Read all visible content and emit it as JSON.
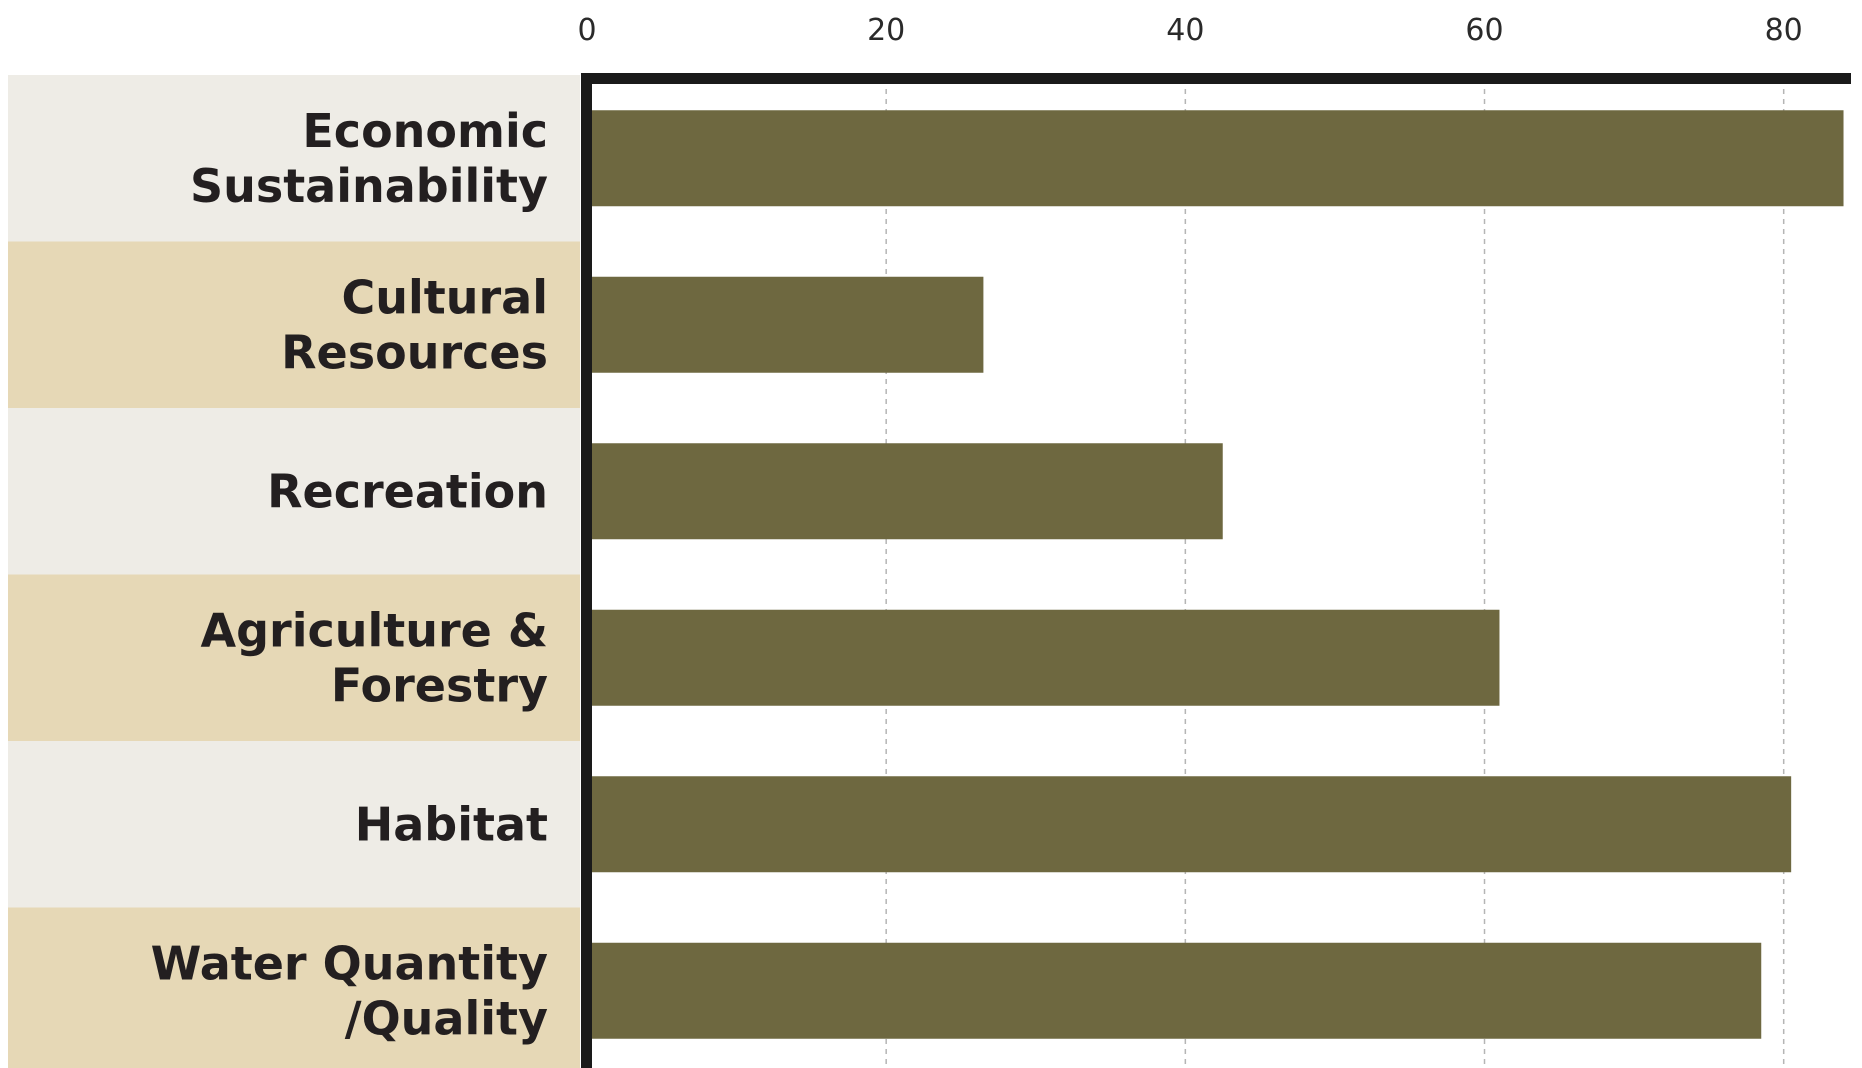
{
  "chart_data": {
    "type": "bar",
    "orientation": "horizontal",
    "title": "",
    "xlabel": "",
    "ylabel": "",
    "categories": [
      [
        "Economic",
        "Sustainability"
      ],
      [
        "Cultural",
        "Resources"
      ],
      [
        "Recreation"
      ],
      [
        "Agriculture &",
        "Forestry"
      ],
      [
        "Habitat"
      ],
      [
        "Water Quantity",
        "/Quality"
      ]
    ],
    "values": [
      84,
      26.5,
      42.5,
      61,
      80.5,
      78.5
    ],
    "xlim": [
      0,
      84.5
    ],
    "xticks": [
      0,
      20,
      40,
      60,
      80
    ],
    "xtick_labels": [
      "0",
      "20",
      "40",
      "60",
      "80"
    ],
    "x_axis_position": "top",
    "grid": "vertical dashed",
    "legend": "none",
    "colors": {
      "bar": "#6e6840",
      "band_light": "#eeece6",
      "band_tan": "#e6d8b6",
      "axis": "#1a1a1a",
      "grid": "#b5b5b5",
      "label": "#231f20"
    }
  }
}
